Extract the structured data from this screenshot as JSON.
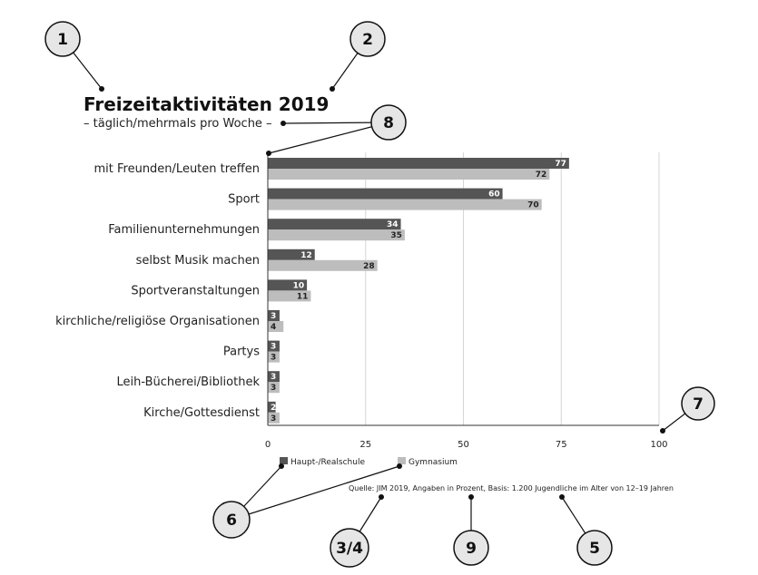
{
  "title": "Freizeitaktivitäten 2019",
  "subtitle": "– täglich/mehrmals pro Woche –",
  "source": "Quelle: JIM 2019, Angaben in Prozent, Basis: 1.200 Jugendliche im Alter von 12–19 Jahren",
  "markers": [
    {
      "label": "1"
    },
    {
      "label": "2"
    },
    {
      "label": "8"
    },
    {
      "label": "7"
    },
    {
      "label": "6"
    },
    {
      "label": "3/4"
    },
    {
      "label": "9"
    },
    {
      "label": "5"
    }
  ],
  "colors": {
    "series1": "#555555",
    "series2": "#bdbdbd",
    "grid": "#d6d6d6",
    "axis": "#333333"
  },
  "chart_data": {
    "type": "bar",
    "orientation": "horizontal",
    "title": "Freizeitaktivitäten 2019",
    "subtitle": "– täglich/mehrmals pro Woche –",
    "categories": [
      "mit Freunden/Leuten treffen",
      "Sport",
      "Familienunternehmungen",
      "selbst Musik machen",
      "Sportveranstaltungen",
      "kirchliche/religiöse Organisationen",
      "Partys",
      "Leih-Bücherei/Bibliothek",
      "Kirche/Gottesdienst"
    ],
    "series": [
      {
        "name": "Haupt-/Realschule",
        "values": [
          77,
          60,
          34,
          12,
          10,
          3,
          3,
          3,
          2
        ]
      },
      {
        "name": "Gymnasium",
        "values": [
          72,
          70,
          35,
          28,
          11,
          4,
          3,
          3,
          3
        ]
      }
    ],
    "xlim": [
      0,
      100
    ],
    "xticks": [
      0,
      25,
      50,
      75,
      100
    ],
    "grid": true,
    "legend": "bottom-left"
  }
}
